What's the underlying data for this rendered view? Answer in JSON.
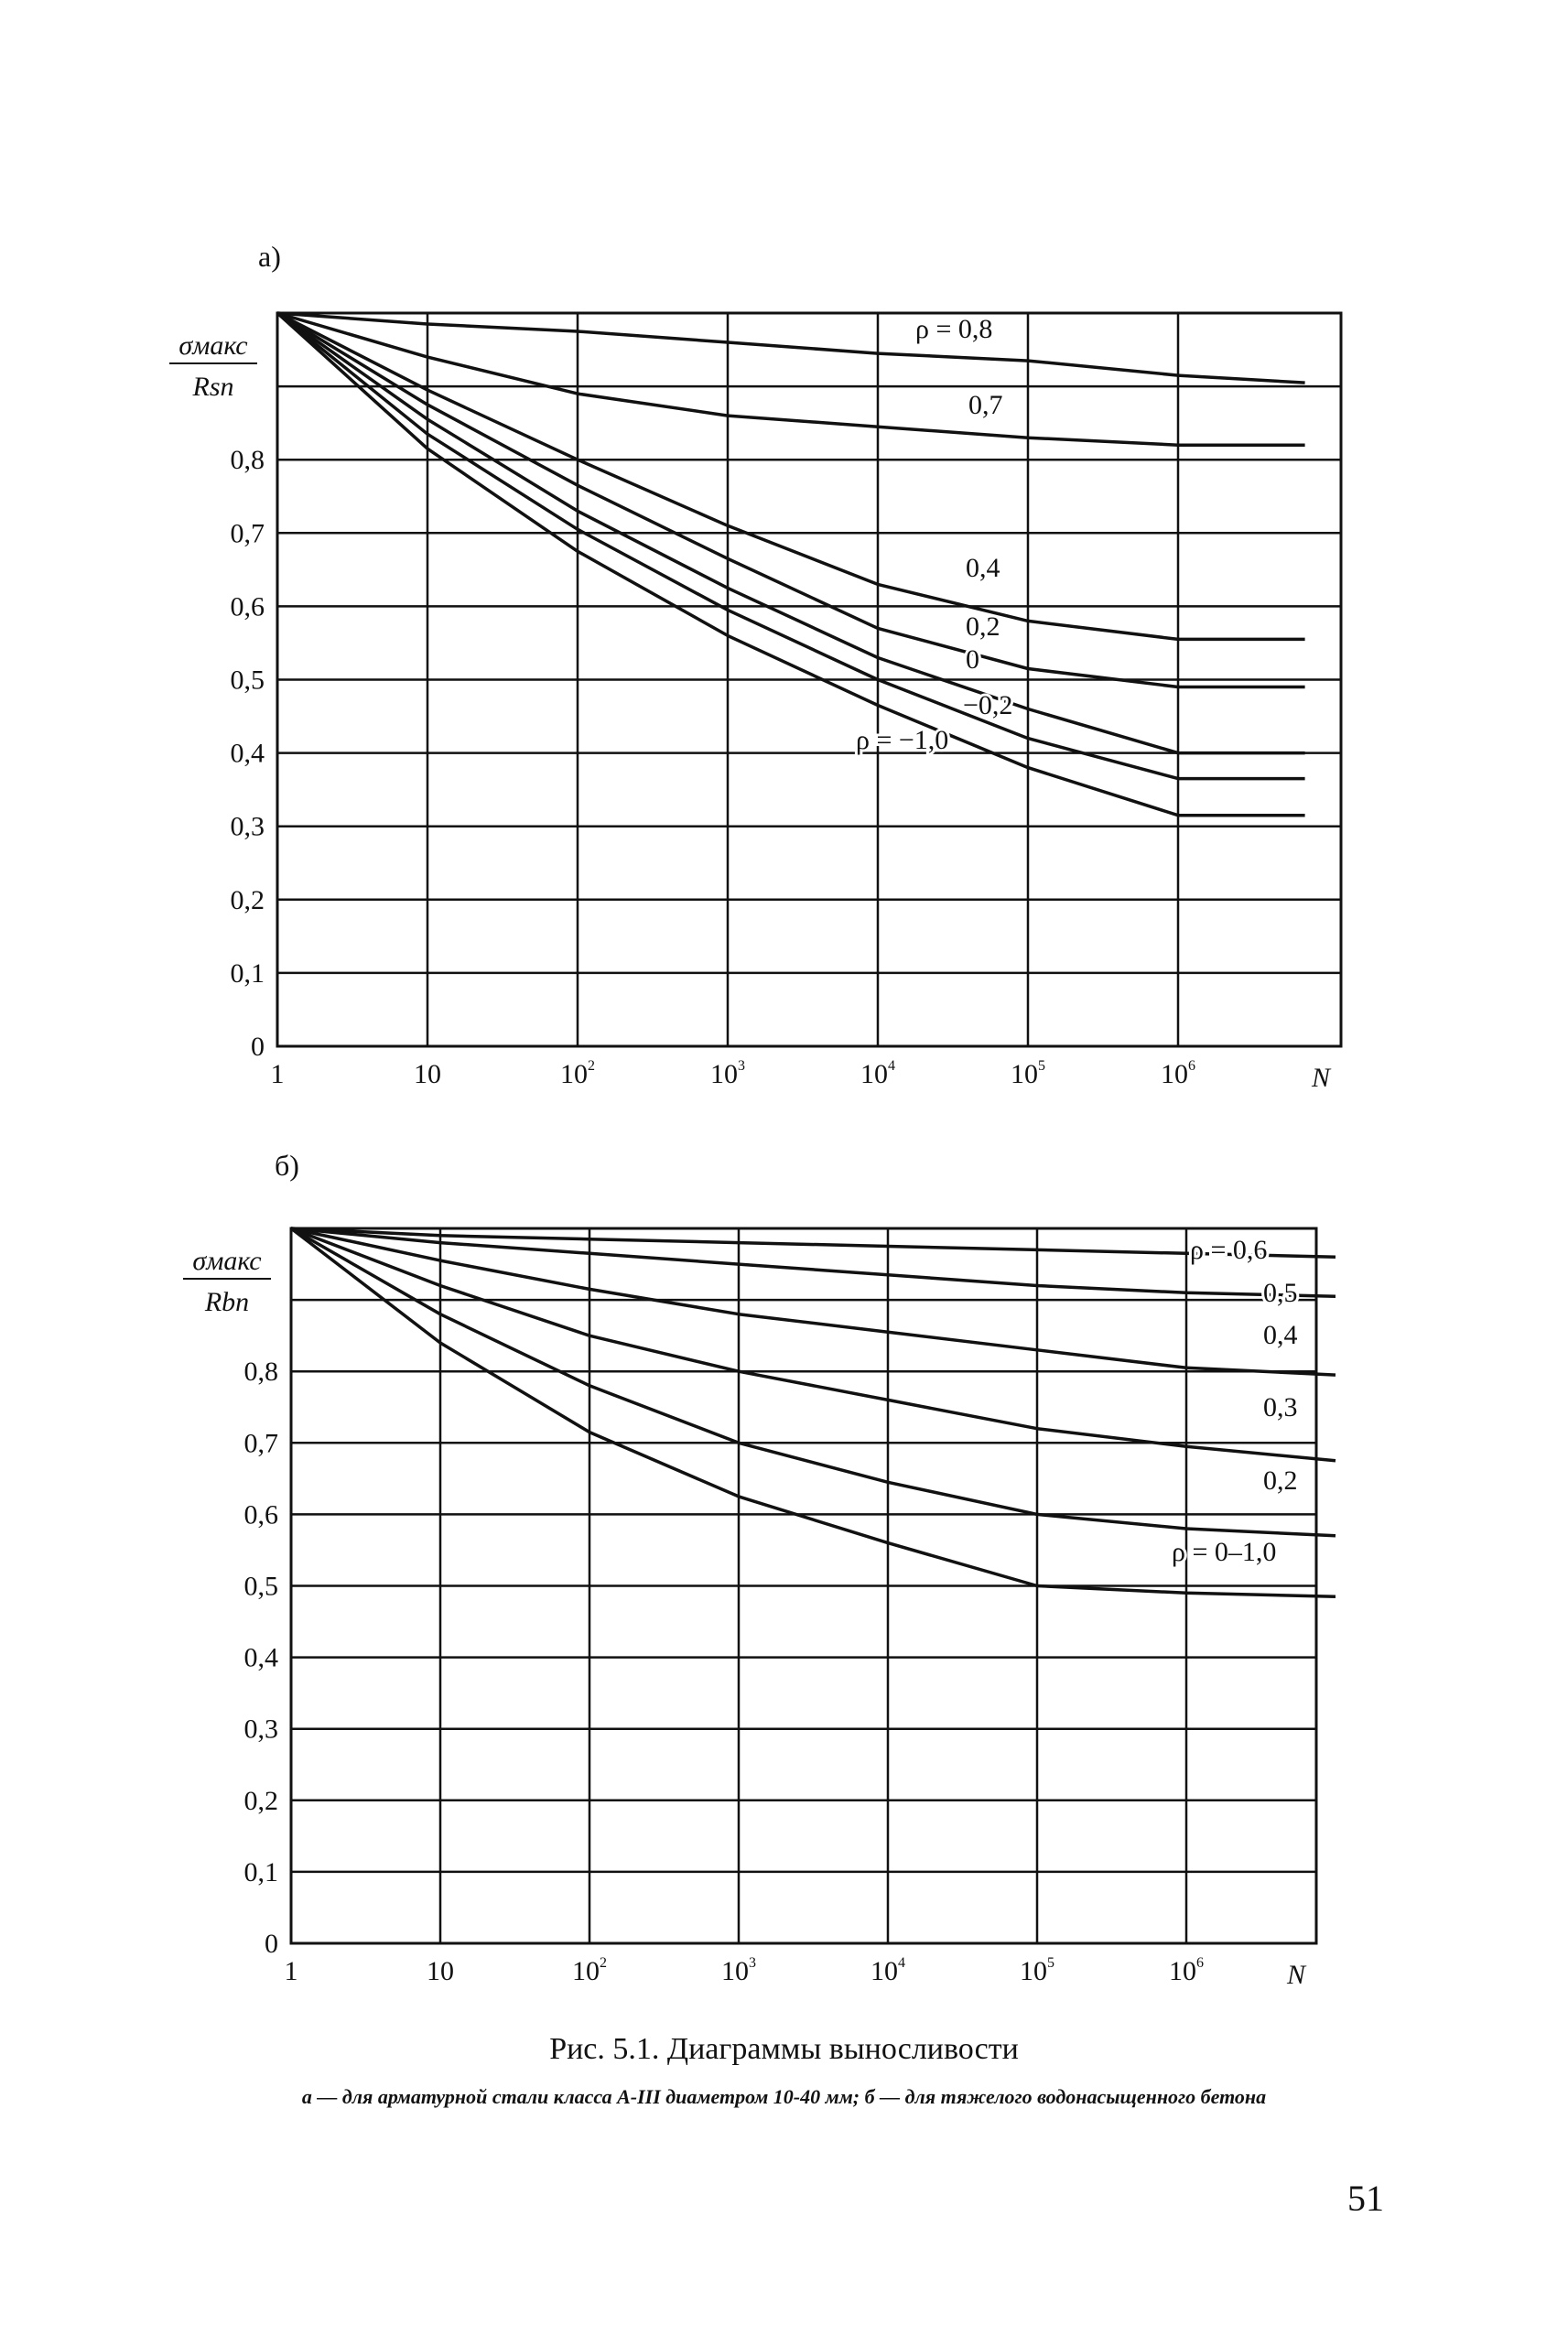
{
  "chart_data": [
    {
      "type": "line",
      "panel_label": "а)",
      "ylabel_num": "σмакс",
      "ylabel_den": "Rsn",
      "xlabel": "N",
      "x_ticks": [
        "1",
        "10",
        "10",
        "10",
        "10",
        "10",
        "10"
      ],
      "x_tick_sup": [
        "",
        "",
        "2",
        "3",
        "4",
        "5",
        "6"
      ],
      "y_ticks": [
        "0",
        "0,1",
        "0,2",
        "0,3",
        "0,4",
        "0,5",
        "0,6",
        "0,7",
        "0,8"
      ],
      "ylim": [
        0,
        1
      ],
      "x_scale": "log",
      "grid": true,
      "series": [
        {
          "name": "ρ = 0,8",
          "points": [
            [
              1,
              1.0
            ],
            [
              10,
              0.985
            ],
            [
              100,
              0.975
            ],
            [
              1000,
              0.96
            ],
            [
              10000,
              0.945
            ],
            [
              100000,
              0.935
            ],
            [
              1000000,
              0.915
            ],
            [
              7000000,
              0.905
            ]
          ]
        },
        {
          "name": "0,7",
          "points": [
            [
              1,
              1.0
            ],
            [
              10,
              0.94
            ],
            [
              100,
              0.89
            ],
            [
              1000,
              0.86
            ],
            [
              10000,
              0.845
            ],
            [
              100000,
              0.83
            ],
            [
              1000000,
              0.82
            ],
            [
              7000000,
              0.82
            ]
          ]
        },
        {
          "name": "0,4",
          "points": [
            [
              1,
              1.0
            ],
            [
              10,
              0.895
            ],
            [
              100,
              0.8
            ],
            [
              1000,
              0.71
            ],
            [
              10000,
              0.63
            ],
            [
              100000,
              0.58
            ],
            [
              1000000,
              0.555
            ],
            [
              7000000,
              0.555
            ]
          ]
        },
        {
          "name": "0,2",
          "points": [
            [
              1,
              1.0
            ],
            [
              10,
              0.875
            ],
            [
              100,
              0.765
            ],
            [
              1000,
              0.665
            ],
            [
              10000,
              0.57
            ],
            [
              100000,
              0.515
            ],
            [
              1000000,
              0.49
            ],
            [
              7000000,
              0.49
            ]
          ]
        },
        {
          "name": "0",
          "points": [
            [
              1,
              1.0
            ],
            [
              10,
              0.855
            ],
            [
              100,
              0.73
            ],
            [
              1000,
              0.625
            ],
            [
              10000,
              0.53
            ],
            [
              100000,
              0.46
            ],
            [
              1000000,
              0.4
            ],
            [
              7000000,
              0.4
            ]
          ]
        },
        {
          "name": "−0,2",
          "points": [
            [
              1,
              1.0
            ],
            [
              10,
              0.835
            ],
            [
              100,
              0.705
            ],
            [
              1000,
              0.595
            ],
            [
              10000,
              0.5
            ],
            [
              100000,
              0.42
            ],
            [
              1000000,
              0.365
            ],
            [
              7000000,
              0.365
            ]
          ]
        },
        {
          "name": "ρ = −1,0",
          "points": [
            [
              1,
              1.0
            ],
            [
              10,
              0.815
            ],
            [
              100,
              0.675
            ],
            [
              1000,
              0.56
            ],
            [
              10000,
              0.465
            ],
            [
              100000,
              0.38
            ],
            [
              1000000,
              0.315
            ],
            [
              7000000,
              0.315
            ]
          ]
        }
      ]
    },
    {
      "type": "line",
      "panel_label": "б)",
      "ylabel_num": "σмакс",
      "ylabel_den": "Rbn",
      "xlabel": "N",
      "x_ticks": [
        "1",
        "10",
        "10",
        "10",
        "10",
        "10",
        "10"
      ],
      "x_tick_sup": [
        "",
        "",
        "2",
        "3",
        "4",
        "5",
        "6"
      ],
      "y_ticks": [
        "0",
        "0,1",
        "0,2",
        "0,3",
        "0,4",
        "0,5",
        "0,6",
        "0,7",
        "0,8"
      ],
      "ylim": [
        0,
        1
      ],
      "x_scale": "log",
      "grid": true,
      "series": [
        {
          "name": "ρ = 0,6",
          "points": [
            [
              1,
              1.0
            ],
            [
              10,
              0.99
            ],
            [
              100,
              0.985
            ],
            [
              1000,
              0.98
            ],
            [
              10000,
              0.975
            ],
            [
              100000,
              0.97
            ],
            [
              1000000,
              0.965
            ],
            [
              10000000,
              0.96
            ]
          ]
        },
        {
          "name": "0,5",
          "points": [
            [
              1,
              1.0
            ],
            [
              10,
              0.98
            ],
            [
              100,
              0.965
            ],
            [
              1000,
              0.95
            ],
            [
              10000,
              0.935
            ],
            [
              100000,
              0.92
            ],
            [
              1000000,
              0.91
            ],
            [
              10000000,
              0.905
            ]
          ]
        },
        {
          "name": "0,4",
          "points": [
            [
              1,
              1.0
            ],
            [
              10,
              0.955
            ],
            [
              100,
              0.915
            ],
            [
              1000,
              0.88
            ],
            [
              10000,
              0.855
            ],
            [
              100000,
              0.83
            ],
            [
              1000000,
              0.805
            ],
            [
              10000000,
              0.795
            ]
          ]
        },
        {
          "name": "0,3",
          "points": [
            [
              1,
              1.0
            ],
            [
              10,
              0.92
            ],
            [
              100,
              0.85
            ],
            [
              1000,
              0.8
            ],
            [
              10000,
              0.76
            ],
            [
              100000,
              0.72
            ],
            [
              1000000,
              0.695
            ],
            [
              10000000,
              0.675
            ]
          ]
        },
        {
          "name": "0,2",
          "points": [
            [
              1,
              1.0
            ],
            [
              10,
              0.88
            ],
            [
              100,
              0.78
            ],
            [
              1000,
              0.7
            ],
            [
              10000,
              0.645
            ],
            [
              100000,
              0.6
            ],
            [
              1000000,
              0.58
            ],
            [
              10000000,
              0.57
            ]
          ]
        },
        {
          "name": "ρ = 0–1,0",
          "points": [
            [
              1,
              1.0
            ],
            [
              10,
              0.84
            ],
            [
              100,
              0.715
            ],
            [
              1000,
              0.625
            ],
            [
              10000,
              0.56
            ],
            [
              100000,
              0.5
            ],
            [
              1000000,
              0.49
            ],
            [
              10000000,
              0.485
            ]
          ]
        }
      ]
    }
  ],
  "caption": {
    "title": "Рис. 5.1. Диаграммы выносливости",
    "subtitle": "а — для арматурной стали класса А-III диаметром 10-40 мм; б — для тяжелого водонасыщенного бетона"
  },
  "page_number": "51"
}
